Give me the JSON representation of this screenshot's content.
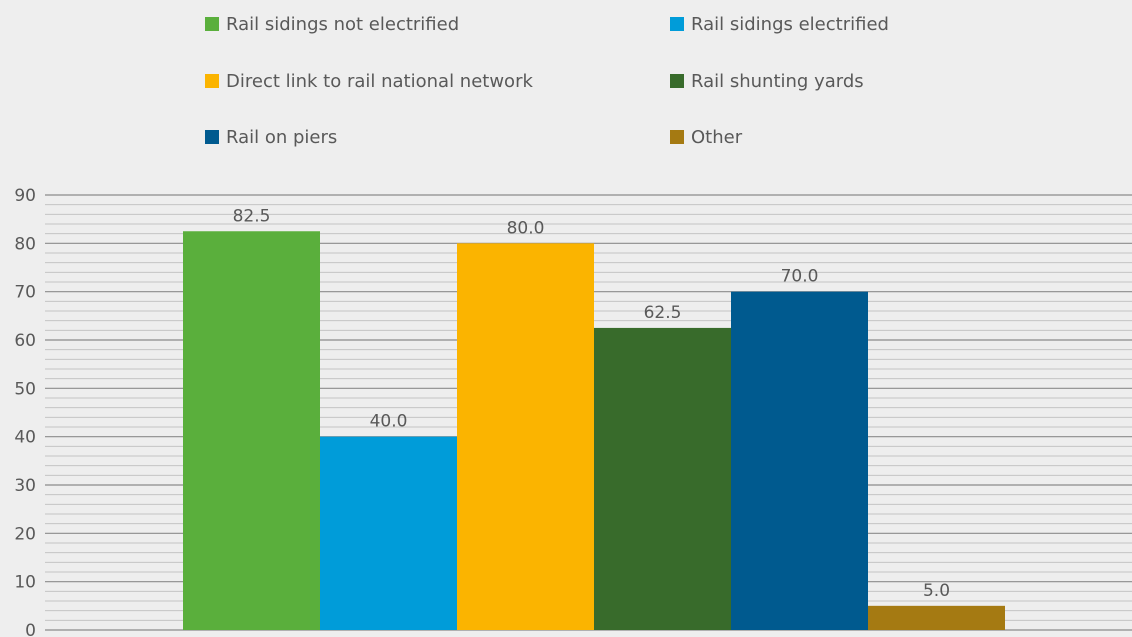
{
  "chart_data": {
    "type": "bar",
    "series": [
      {
        "name": "Rail sidings not electrified",
        "value": 82.5,
        "label": "82.5",
        "color": "#5aaf3c"
      },
      {
        "name": "Rail sidings electrified",
        "value": 40.0,
        "label": "40.0",
        "color": "#009cd9"
      },
      {
        "name": "Direct link to rail national network",
        "value": 80.0,
        "label": "80.0",
        "color": "#fbb400"
      },
      {
        "name": "Rail shunting yards",
        "value": 62.5,
        "label": "62.5",
        "color": "#386b2b"
      },
      {
        "name": "Rail on piers",
        "value": 70.0,
        "label": "70.0",
        "color": "#005a8f"
      },
      {
        "name": "Other",
        "value": 5.0,
        "label": "5.0",
        "color": "#a57a12"
      }
    ],
    "y_ticks": [
      "0",
      "10",
      "20",
      "30",
      "40",
      "50",
      "60",
      "70",
      "80",
      "90"
    ],
    "ylim": [
      0,
      90
    ],
    "major_gridline_step": 10,
    "minor_gridline_step": 2,
    "grid": true,
    "legend_position": "top",
    "legend_columns": 2,
    "title": "",
    "xlabel": "",
    "ylabel": ""
  },
  "colors": {
    "background": "#eeeeee",
    "major_gridline": "#8c8c8c",
    "minor_gridline": "#c4c4c4",
    "text": "#595959"
  }
}
